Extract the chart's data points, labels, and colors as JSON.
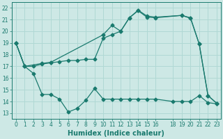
{
  "xlabel": "Humidex (Indice chaleur)",
  "bg_color": "#cde8e5",
  "grid_color": "#b0d8d4",
  "line_color": "#1a7a6e",
  "xlim": [
    -0.5,
    23.5
  ],
  "ylim": [
    12.5,
    22.5
  ],
  "xticks": [
    0,
    1,
    2,
    3,
    4,
    5,
    6,
    7,
    8,
    9,
    10,
    11,
    12,
    13,
    14,
    15,
    16,
    18,
    19,
    20,
    21,
    22,
    23
  ],
  "yticks": [
    13,
    14,
    15,
    16,
    17,
    18,
    19,
    20,
    21,
    22
  ],
  "line1_x": [
    0,
    1,
    2,
    3,
    4,
    5,
    6,
    7,
    8,
    9,
    10,
    11,
    12,
    13,
    14,
    15,
    16,
    18,
    19,
    20,
    21,
    22,
    23
  ],
  "line1_y": [
    19.0,
    17.0,
    16.4,
    14.6,
    14.6,
    14.2,
    13.1,
    13.4,
    14.1,
    15.1,
    14.2,
    14.2,
    14.2,
    14.2,
    14.2,
    14.2,
    14.2,
    14.0,
    14.0,
    14.0,
    14.5,
    13.9,
    13.8
  ],
  "line2_x": [
    0,
    1,
    2,
    3,
    4,
    5,
    6,
    7,
    8,
    9,
    10,
    11,
    12,
    13,
    14,
    15,
    16,
    19,
    20,
    21,
    22,
    23
  ],
  "line2_y": [
    19.0,
    17.0,
    17.0,
    17.2,
    17.3,
    17.4,
    17.5,
    17.5,
    17.6,
    17.6,
    19.4,
    19.7,
    20.0,
    21.15,
    21.75,
    21.2,
    21.15,
    21.35,
    21.1,
    18.9,
    14.5,
    13.85
  ],
  "line3_x": [
    0,
    1,
    3,
    4,
    10,
    11,
    12,
    13,
    14,
    15,
    16,
    19,
    20,
    21,
    22,
    23
  ],
  "line3_y": [
    19.0,
    17.0,
    17.25,
    17.35,
    19.7,
    20.5,
    20.0,
    21.15,
    21.8,
    21.3,
    21.2,
    21.35,
    21.15,
    18.9,
    14.5,
    13.85
  ],
  "title_fontsize": 7,
  "xlabel_fontsize": 7,
  "tick_fontsize": 5.5
}
